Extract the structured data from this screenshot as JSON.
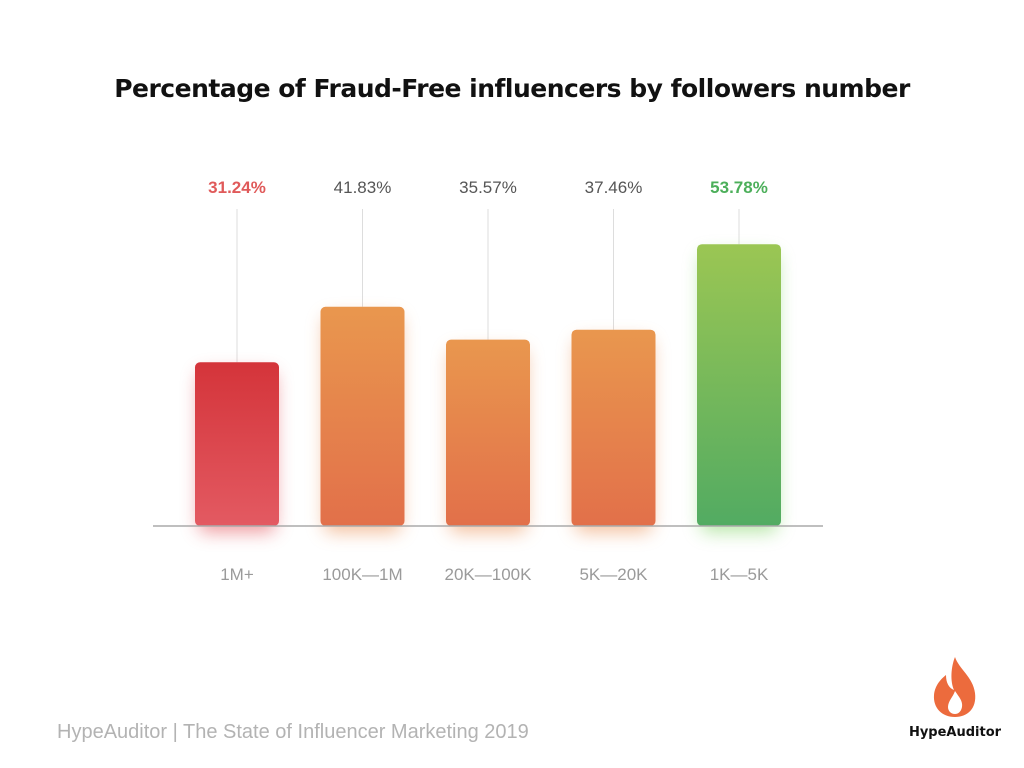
{
  "title": "Percentage of Fraud-Free influencers by followers number",
  "footer": "HypeAuditor | The State of Influencer Marketing 2019",
  "logo": {
    "text": "HypeAuditor",
    "icon": "flame-icon",
    "color": "#ec6b3d"
  },
  "colors": {
    "lowest": "#d9363e",
    "middle": "#e8894a",
    "highest": "#5aae5f",
    "lowest_label": "#e05a5a",
    "highest_label": "#4caf5a",
    "normal_label": "#555555",
    "axis": "#aaaaaa",
    "category_label": "#9a9a9a"
  },
  "chart_data": {
    "type": "bar",
    "title": "Percentage of Fraud-Free influencers by followers number",
    "categories": [
      "1M+",
      "100K—1M",
      "20K—100K",
      "5K—20K",
      "1K—5K"
    ],
    "values": [
      31.24,
      41.83,
      35.57,
      37.46,
      53.78
    ],
    "value_labels": [
      "31.24%",
      "41.83%",
      "35.57%",
      "37.46%",
      "53.78%"
    ],
    "ylim": [
      0,
      60
    ],
    "grid": false,
    "legend": false
  }
}
